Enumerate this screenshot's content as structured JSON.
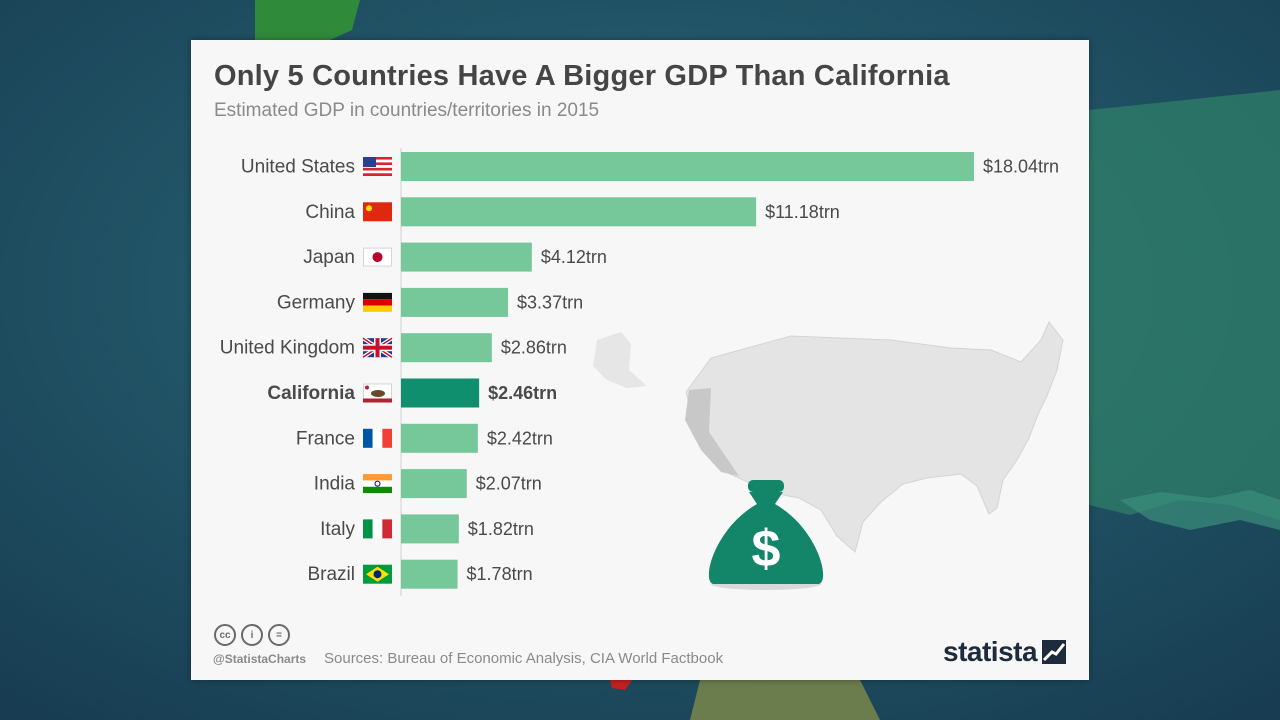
{
  "title": "Only 5 Countries Have A Bigger GDP Than California",
  "subtitle": "Estimated GDP in countries/territories in 2015",
  "footer": {
    "handle": "@StatistaCharts",
    "source": "Sources: Bureau of Economic Analysis, CIA World Factbook",
    "brand": "statista",
    "license_icons": [
      "cc-icon",
      "by-icon",
      "nd-icon"
    ],
    "license_glyphs": [
      "cc",
      "i",
      "="
    ]
  },
  "colors": {
    "bar": "#76c79a",
    "highlight_bar": "#0f8f6e",
    "money_bag": "#13866a",
    "map": "#e4e4e4",
    "california_map": "#c8c8c8"
  },
  "decoration": {
    "money_bag_symbol": "$"
  },
  "chart_data": {
    "type": "bar",
    "orientation": "horizontal",
    "categories": [
      "United States",
      "China",
      "Japan",
      "Germany",
      "United Kingdom",
      "California",
      "France",
      "India",
      "Italy",
      "Brazil"
    ],
    "values": [
      18.04,
      11.18,
      4.12,
      3.37,
      2.86,
      2.46,
      2.42,
      2.07,
      1.82,
      1.78
    ],
    "value_labels": [
      "$18.04trn",
      "$11.18trn",
      "$4.12trn",
      "$3.37trn",
      "$2.86trn",
      "$2.46trn",
      "$2.42trn",
      "$2.07trn",
      "$1.82trn",
      "$1.78trn"
    ],
    "flags": [
      "us-flag-icon",
      "china-flag-icon",
      "japan-flag-icon",
      "germany-flag-icon",
      "uk-flag-icon",
      "california-flag-icon",
      "france-flag-icon",
      "india-flag-icon",
      "italy-flag-icon",
      "brazil-flag-icon"
    ],
    "highlight": "California",
    "xlim": [
      0,
      18.04
    ],
    "grid": false,
    "legend": "none"
  }
}
